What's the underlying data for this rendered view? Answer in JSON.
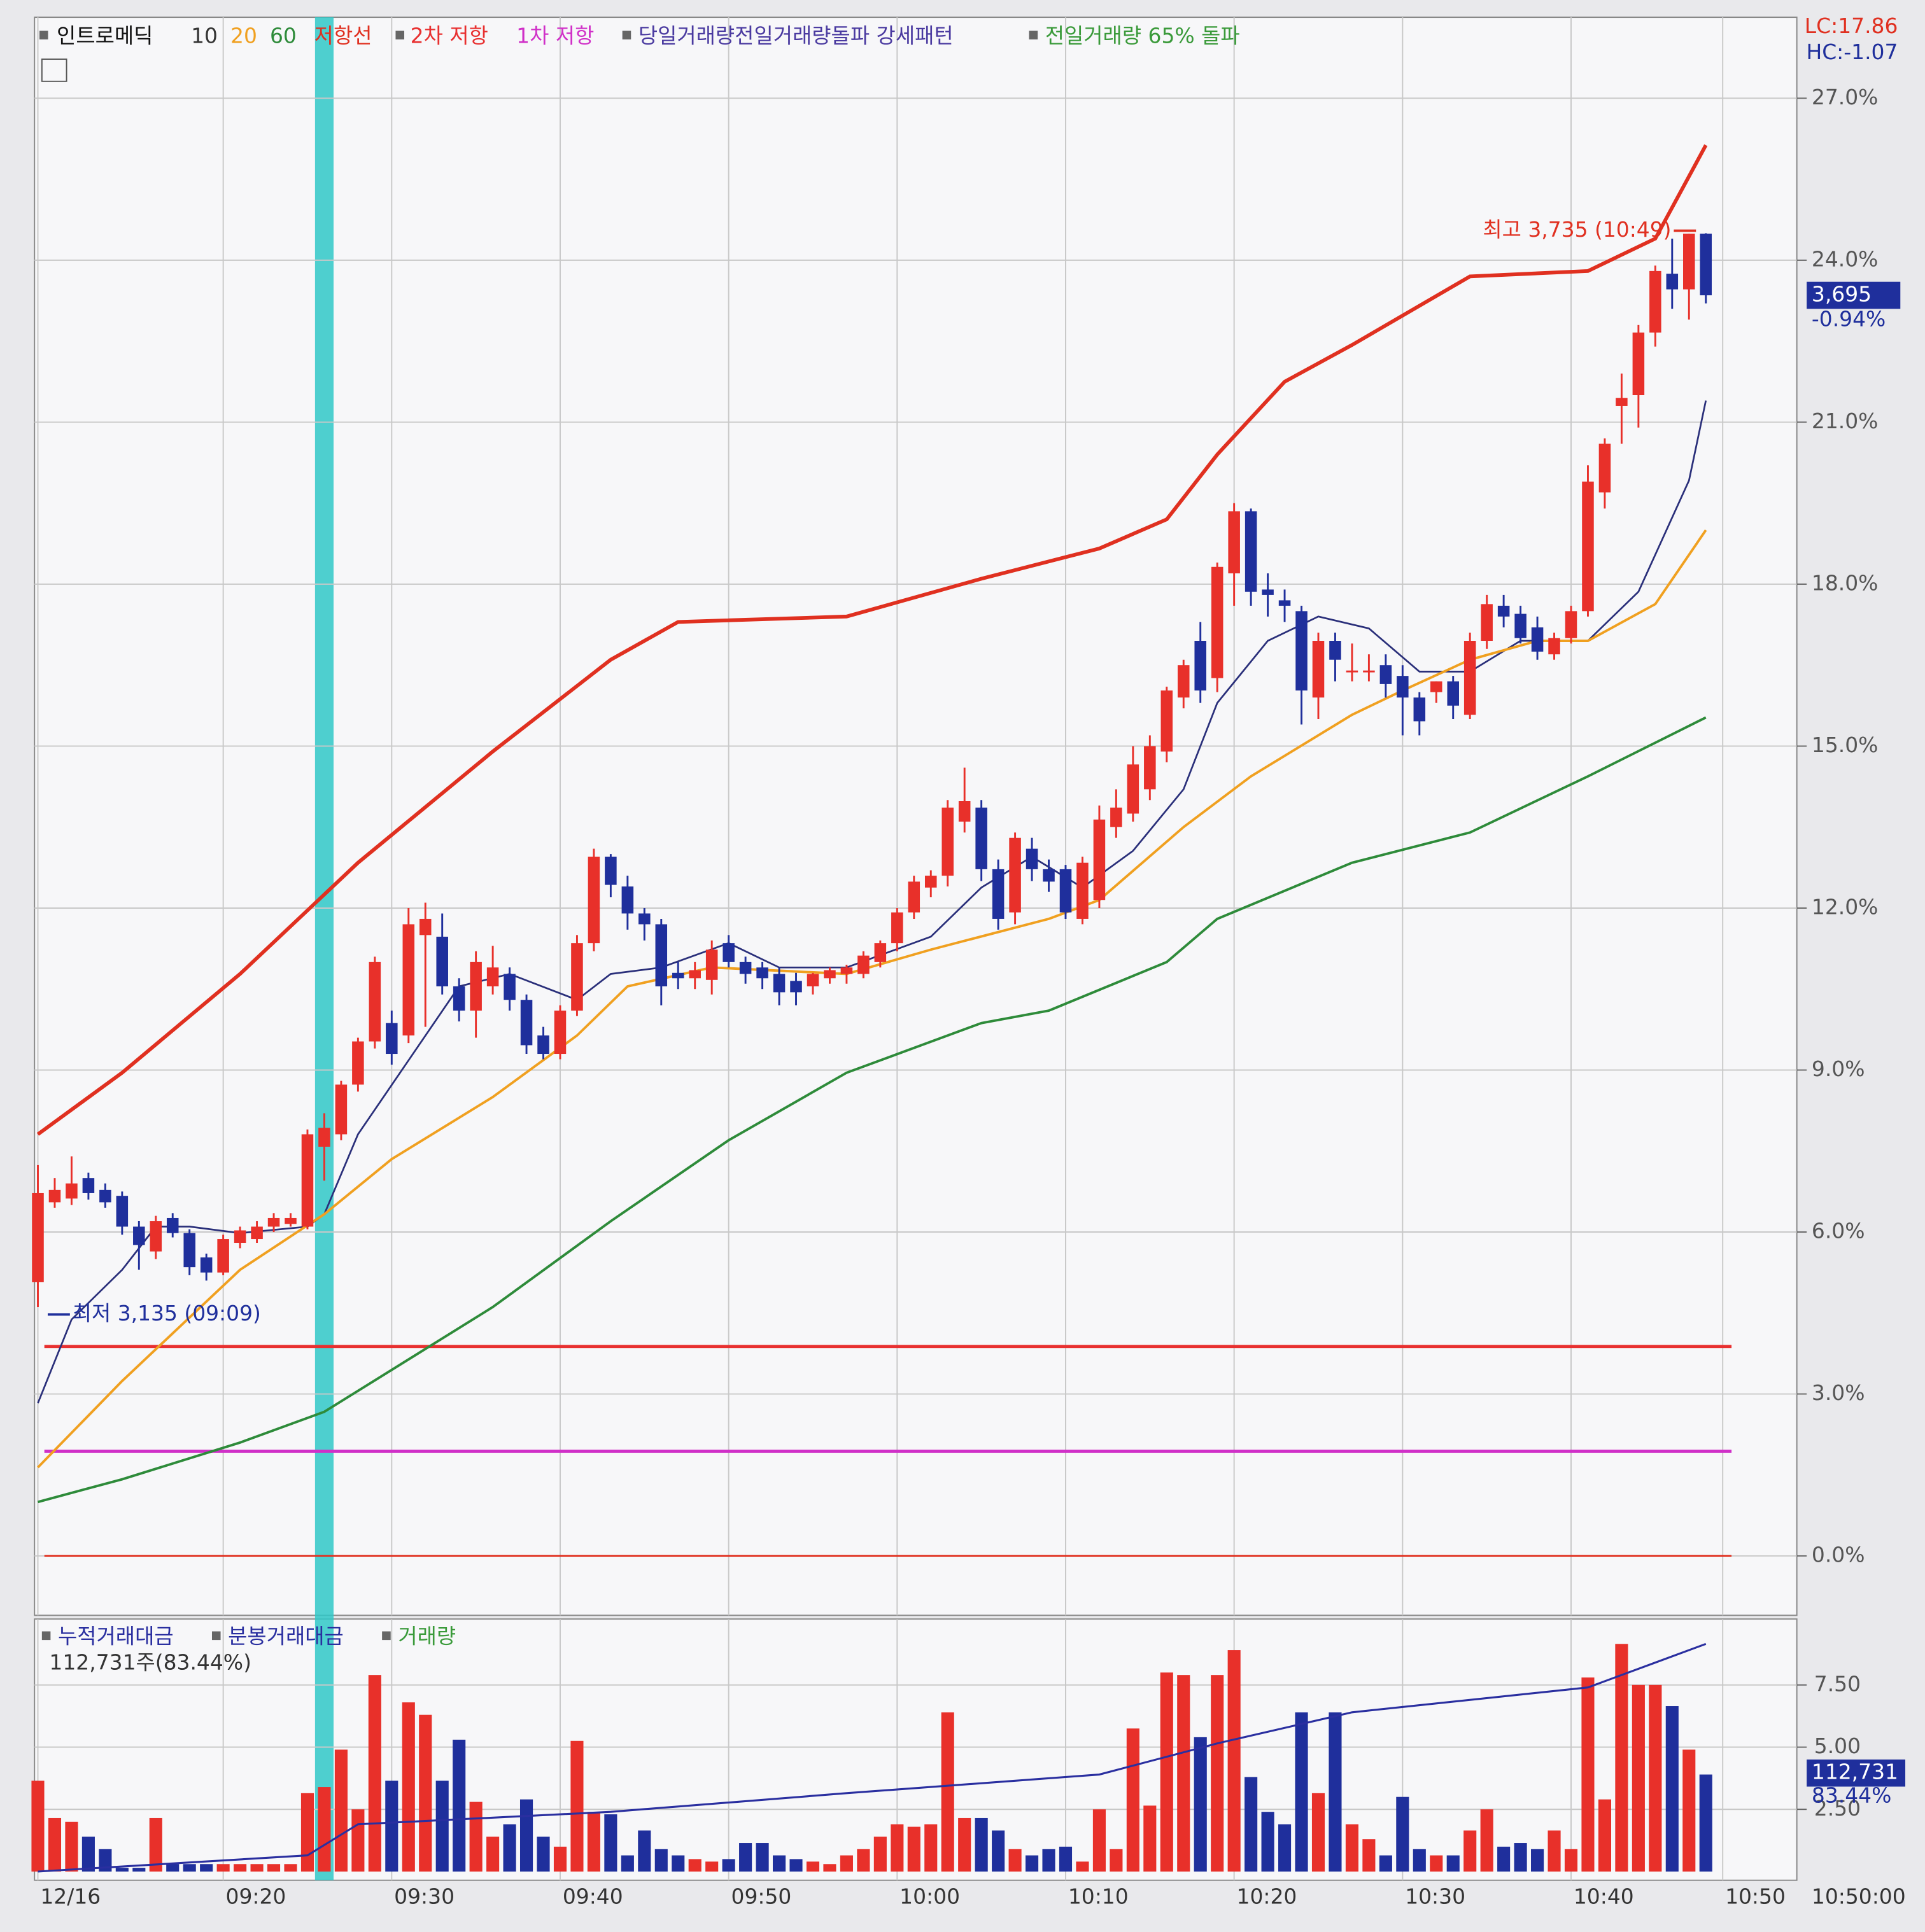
{
  "chart_data": [
    {
      "type": "candlestick",
      "title": "인트로메딕",
      "up_color": "#e8302a",
      "down_color": "#1f2f9c",
      "ohlc": [
        [
          5.07,
          7.24,
          4.61,
          6.72
        ],
        [
          6.55,
          7.0,
          6.45,
          6.78
        ],
        [
          6.62,
          7.4,
          6.5,
          6.9
        ],
        [
          7.0,
          7.1,
          6.6,
          6.72
        ],
        [
          6.78,
          6.9,
          6.45,
          6.55
        ],
        [
          6.67,
          6.75,
          5.95,
          6.1
        ],
        [
          6.1,
          6.2,
          5.3,
          5.76
        ],
        [
          5.64,
          6.3,
          5.5,
          6.2
        ],
        [
          6.26,
          6.35,
          5.9,
          5.98
        ],
        [
          5.98,
          6.05,
          5.2,
          5.35
        ],
        [
          5.53,
          5.6,
          5.1,
          5.25
        ],
        [
          5.25,
          5.95,
          5.2,
          5.87
        ],
        [
          5.8,
          6.1,
          5.7,
          6.03
        ],
        [
          5.87,
          6.2,
          5.8,
          6.1
        ],
        [
          6.1,
          6.35,
          6.0,
          6.26
        ],
        [
          6.15,
          6.35,
          6.1,
          6.26
        ],
        [
          6.1,
          7.9,
          6.05,
          7.81
        ],
        [
          7.58,
          8.2,
          6.95,
          7.93
        ],
        [
          7.81,
          8.8,
          7.7,
          8.73
        ],
        [
          8.73,
          9.6,
          8.6,
          9.53
        ],
        [
          9.53,
          11.1,
          9.4,
          11.0
        ],
        [
          9.87,
          10.1,
          9.1,
          9.3
        ],
        [
          9.64,
          12.0,
          9.5,
          11.7
        ],
        [
          11.5,
          12.1,
          9.8,
          11.8
        ],
        [
          11.47,
          11.9,
          10.4,
          10.55
        ],
        [
          10.55,
          10.7,
          9.9,
          10.1
        ],
        [
          10.1,
          11.2,
          9.6,
          11.0
        ],
        [
          10.55,
          11.3,
          10.4,
          10.9
        ],
        [
          10.78,
          10.9,
          10.1,
          10.3
        ],
        [
          10.3,
          10.4,
          9.3,
          9.46
        ],
        [
          9.64,
          9.8,
          9.2,
          9.3
        ],
        [
          9.3,
          10.2,
          9.2,
          10.1
        ],
        [
          10.1,
          11.5,
          10.0,
          11.35
        ],
        [
          11.35,
          13.1,
          11.2,
          12.95
        ],
        [
          12.95,
          13.0,
          12.2,
          12.43
        ],
        [
          12.4,
          12.6,
          11.6,
          11.9
        ],
        [
          11.9,
          12.0,
          11.4,
          11.7
        ],
        [
          11.7,
          11.8,
          10.2,
          10.55
        ],
        [
          10.8,
          11.0,
          10.5,
          10.7
        ],
        [
          10.7,
          11.0,
          10.5,
          10.85
        ],
        [
          10.67,
          11.4,
          10.4,
          11.23
        ],
        [
          11.35,
          11.5,
          10.9,
          11.0
        ],
        [
          11.0,
          11.1,
          10.6,
          10.78
        ],
        [
          10.9,
          11.0,
          10.5,
          10.7
        ],
        [
          10.78,
          10.9,
          10.2,
          10.44
        ],
        [
          10.65,
          10.8,
          10.2,
          10.44
        ],
        [
          10.55,
          10.8,
          10.4,
          10.78
        ],
        [
          10.7,
          10.9,
          10.6,
          10.85
        ],
        [
          10.78,
          10.95,
          10.6,
          10.9
        ],
        [
          10.78,
          11.2,
          10.7,
          11.12
        ],
        [
          11.0,
          11.4,
          10.9,
          11.35
        ],
        [
          11.35,
          12.0,
          11.2,
          11.92
        ],
        [
          11.92,
          12.6,
          11.8,
          12.49
        ],
        [
          12.38,
          12.7,
          12.2,
          12.6
        ],
        [
          12.6,
          14.0,
          12.4,
          13.86
        ],
        [
          13.6,
          14.6,
          13.4,
          13.98
        ],
        [
          13.86,
          14.0,
          12.5,
          12.72
        ],
        [
          12.72,
          12.9,
          11.6,
          11.8
        ],
        [
          11.92,
          13.4,
          11.7,
          13.3
        ],
        [
          13.1,
          13.3,
          12.5,
          12.72
        ],
        [
          12.72,
          12.9,
          12.3,
          12.49
        ],
        [
          12.72,
          12.8,
          11.8,
          11.92
        ],
        [
          11.8,
          12.95,
          11.7,
          12.84
        ],
        [
          12.15,
          13.9,
          12.0,
          13.64
        ],
        [
          13.5,
          14.2,
          13.3,
          13.86
        ],
        [
          13.75,
          15.0,
          13.6,
          14.66
        ],
        [
          14.2,
          15.2,
          14.0,
          15.0
        ],
        [
          14.9,
          16.1,
          14.7,
          16.03
        ],
        [
          15.9,
          16.6,
          15.7,
          16.5
        ],
        [
          16.95,
          17.3,
          15.8,
          16.03
        ],
        [
          16.26,
          18.4,
          16.0,
          18.32
        ],
        [
          18.2,
          19.5,
          17.6,
          19.35
        ],
        [
          19.35,
          19.4,
          17.6,
          17.86
        ],
        [
          17.9,
          18.2,
          17.4,
          17.8
        ],
        [
          17.7,
          17.9,
          17.3,
          17.6
        ],
        [
          17.5,
          17.6,
          15.4,
          16.03
        ],
        [
          15.9,
          17.1,
          15.5,
          16.95
        ],
        [
          16.95,
          17.1,
          16.2,
          16.6
        ],
        [
          16.4,
          16.9,
          16.2,
          16.4
        ],
        [
          16.4,
          16.7,
          16.2,
          16.4
        ],
        [
          16.5,
          16.7,
          15.9,
          16.15
        ],
        [
          16.3,
          16.5,
          15.2,
          15.9
        ],
        [
          15.9,
          16.0,
          15.2,
          15.46
        ],
        [
          16.0,
          16.2,
          15.8,
          16.2
        ],
        [
          16.2,
          16.3,
          15.5,
          15.75
        ],
        [
          15.58,
          17.1,
          15.5,
          16.95
        ],
        [
          16.95,
          17.8,
          16.8,
          17.63
        ],
        [
          17.6,
          17.8,
          17.2,
          17.4
        ],
        [
          17.45,
          17.6,
          16.9,
          17.0
        ],
        [
          17.2,
          17.4,
          16.6,
          16.75
        ],
        [
          16.7,
          17.1,
          16.6,
          17.0
        ],
        [
          17.0,
          17.6,
          16.9,
          17.5
        ],
        [
          17.5,
          20.2,
          17.4,
          19.9
        ],
        [
          19.7,
          20.7,
          19.4,
          20.6
        ],
        [
          21.3,
          21.9,
          20.6,
          21.45
        ],
        [
          21.5,
          22.8,
          20.9,
          22.66
        ],
        [
          22.66,
          23.9,
          22.4,
          23.8
        ],
        [
          23.75,
          24.4,
          23.1,
          23.46
        ],
        [
          23.46,
          24.49,
          22.9,
          24.49
        ],
        [
          24.49,
          24.5,
          23.2,
          23.35
        ]
      ],
      "series": [
        {
          "name": "10",
          "color": "#2a2f7a",
          "x": [
            0,
            2,
            5,
            7,
            9,
            12,
            16,
            17,
            19,
            22,
            25,
            28,
            32,
            34,
            37,
            41,
            44,
            48,
            53,
            56,
            59,
            62,
            65,
            68,
            70,
            73,
            76,
            79,
            82,
            85,
            88,
            92,
            95,
            98,
            99
          ],
          "values": [
            2.83,
            4.38,
            5.3,
            6.1,
            6.1,
            5.98,
            6.1,
            6.33,
            7.81,
            9.18,
            10.55,
            10.78,
            10.3,
            10.78,
            10.9,
            11.35,
            10.9,
            10.9,
            11.47,
            12.38,
            12.95,
            12.38,
            13.06,
            14.2,
            15.8,
            16.95,
            17.4,
            17.18,
            16.38,
            16.38,
            16.95,
            16.95,
            17.86,
            19.92,
            21.4
          ]
        },
        {
          "name": "20",
          "color": "#f0a020",
          "x": [
            0,
            5,
            12,
            17,
            21,
            27,
            32,
            35,
            40,
            48,
            53,
            60,
            63,
            68,
            72,
            78,
            81,
            85,
            89,
            92,
            96,
            99
          ],
          "values": [
            1.64,
            3.24,
            5.3,
            6.33,
            7.35,
            8.5,
            9.64,
            10.55,
            10.9,
            10.78,
            11.23,
            11.8,
            12.15,
            13.5,
            14.44,
            15.58,
            16.03,
            16.6,
            16.95,
            16.95,
            17.63,
            19.0
          ]
        },
        {
          "name": "60",
          "color": "#2e8b3a",
          "x": [
            0,
            5,
            12,
            17,
            27,
            34,
            41,
            48,
            56,
            60,
            67,
            70,
            78,
            85,
            92,
            99
          ],
          "values": [
            1.0,
            1.42,
            2.1,
            2.67,
            4.61,
            6.2,
            7.7,
            8.95,
            9.87,
            10.1,
            11.0,
            11.8,
            12.84,
            13.4,
            14.44,
            15.53
          ]
        },
        {
          "name": "저항선",
          "color": "#e03020",
          "x": [
            0,
            5,
            12,
            19,
            27,
            34,
            38,
            48,
            56,
            63,
            67,
            70,
            74,
            78,
            85,
            92,
            96,
            99
          ],
          "values": [
            7.81,
            8.95,
            10.78,
            12.84,
            14.9,
            16.6,
            17.3,
            17.4,
            18.1,
            18.66,
            19.2,
            20.4,
            21.75,
            22.43,
            23.7,
            23.8,
            24.4,
            26.13
          ]
        }
      ],
      "hlines": [
        {
          "name": "2차 저항",
          "color": "#e83030",
          "value": 3.88
        },
        {
          "name": "1차 저항",
          "color": "#d030c8",
          "value": 1.94
        },
        {
          "color": "#e03020",
          "value": 0
        }
      ],
      "patterns": [
        {
          "text": "당일거래량전일거래량돌파 강세패턴",
          "color": "#4a3aa0"
        },
        {
          "text": "전일거래량 65% 돌파",
          "color": "#3a9a3a"
        }
      ],
      "highlight": {
        "index": 17,
        "color": "#30c8c8"
      },
      "annotations": {
        "high": "최고 3,735 (10:49)",
        "low": "최저 3,135 (09:09)"
      },
      "price_label": "3,695",
      "change_label": "-0.94%",
      "lc": "LC:17.86",
      "hc": "HC:-1.07",
      "ylim": [
        -1.1,
        28.5
      ],
      "yticks": [
        {
          "value": 0,
          "label": "0.0%"
        },
        {
          "value": 3,
          "label": "3.0%"
        },
        {
          "value": 6,
          "label": "6.0%"
        },
        {
          "value": 9,
          "label": "9.0%"
        },
        {
          "value": 12,
          "label": "12.0%"
        },
        {
          "value": 15,
          "label": "15.0%"
        },
        {
          "value": 18,
          "label": "18.0%"
        },
        {
          "value": 21,
          "label": "21.0%"
        },
        {
          "value": 24,
          "label": "24.0%"
        },
        {
          "value": 27,
          "label": "27.0%"
        }
      ],
      "xlim": [
        -0.2,
        104.4
      ],
      "xticks": [
        {
          "value": 0,
          "label": "12/16"
        },
        {
          "value": 11,
          "label": "09:20"
        },
        {
          "value": 21,
          "label": "09:30"
        },
        {
          "value": 31,
          "label": "09:40"
        },
        {
          "value": 41,
          "label": "09:50"
        },
        {
          "value": 51,
          "label": "10:00"
        },
        {
          "value": 61,
          "label": "10:10"
        },
        {
          "value": 71,
          "label": "10:20"
        },
        {
          "value": 81,
          "label": "10:30"
        },
        {
          "value": 91,
          "label": "10:40"
        },
        {
          "value": 100,
          "label": "10:50"
        }
      ],
      "time_label": "10:50:00",
      "grid": true
    },
    {
      "type": "bar",
      "legend": [
        {
          "text": "누적거래대금",
          "color": "#2a2fa0"
        },
        {
          "text": "분봉거래대금",
          "color": "#2a2fa0"
        },
        {
          "text": "거래량",
          "color": "#3a9a3a"
        }
      ],
      "subtitle": "112,731주(83.44%)",
      "values": [
        3.65,
        2.15,
        2.0,
        1.4,
        0.9,
        0.15,
        0.15,
        2.15,
        0.3,
        0.3,
        0.3,
        0.3,
        0.3,
        0.3,
        0.3,
        0.3,
        3.15,
        3.4,
        4.9,
        2.5,
        7.9,
        3.65,
        6.8,
        6.3,
        3.65,
        5.3,
        2.8,
        1.4,
        1.9,
        2.9,
        1.4,
        1.0,
        5.25,
        2.4,
        2.3,
        0.65,
        1.65,
        0.9,
        0.65,
        0.5,
        0.4,
        0.5,
        1.15,
        1.15,
        0.65,
        0.5,
        0.4,
        0.3,
        0.65,
        0.9,
        1.4,
        1.9,
        1.8,
        1.9,
        6.4,
        2.15,
        2.15,
        1.65,
        0.9,
        0.65,
        0.9,
        1.0,
        0.4,
        2.5,
        0.9,
        5.75,
        2.65,
        8.0,
        7.9,
        5.4,
        7.9,
        8.9,
        3.8,
        2.4,
        1.9,
        6.4,
        3.15,
        6.4,
        1.9,
        1.3,
        0.65,
        3.0,
        0.9,
        0.65,
        0.65,
        1.65,
        2.5,
        1.0,
        1.15,
        0.9,
        1.65,
        0.9,
        7.8,
        2.9,
        9.15,
        7.5,
        7.5,
        6.65,
        4.9,
        3.9
      ],
      "cumulative": {
        "color": "#2a2fa0",
        "x": [
          0,
          16,
          19,
          34,
          48,
          63,
          70,
          78,
          92,
          96,
          99
        ],
        "values": [
          0,
          0.65,
          1.9,
          2.4,
          3.15,
          3.9,
          5.15,
          6.4,
          7.4,
          8.4,
          9.15
        ]
      },
      "last_label": "112,731",
      "last_pct": "83.44%",
      "ylim": [
        -0.35,
        10.15
      ],
      "yticks": [
        {
          "value": 2.5,
          "label": "2.50"
        },
        {
          "value": 5,
          "label": "5.00"
        },
        {
          "value": 7.5,
          "label": "7.50"
        }
      ]
    }
  ]
}
